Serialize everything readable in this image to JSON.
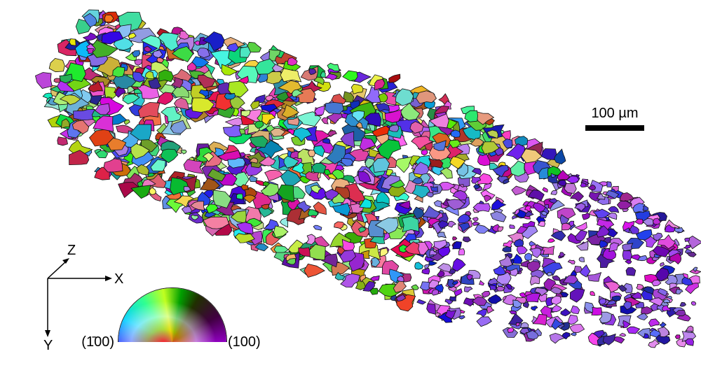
{
  "scale_bar": {
    "label": "100 µm"
  },
  "axes": {
    "z": "Z",
    "x": "X",
    "y": "Y"
  },
  "color_key": {
    "left": "(1̄00)",
    "right": "(100)"
  }
}
